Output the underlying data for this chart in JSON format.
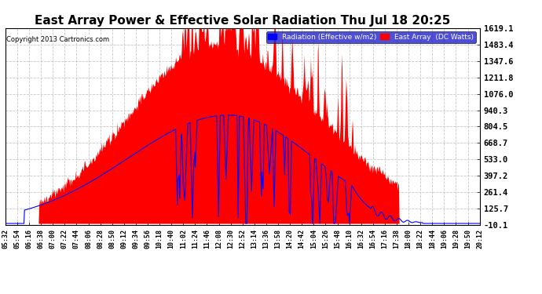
{
  "title": "East Array Power & Effective Solar Radiation Thu Jul 18 20:25",
  "copyright": "Copyright 2013 Cartronics.com",
  "legend_radiation": "Radiation (Effective w/m2)",
  "legend_array": "East Array  (DC Watts)",
  "y_ticks": [
    -10.1,
    125.7,
    261.4,
    397.2,
    533.0,
    668.7,
    804.5,
    940.3,
    1076.0,
    1211.8,
    1347.6,
    1483.4,
    1619.1
  ],
  "y_min": -10.1,
  "y_max": 1619.1,
  "bg_color": "#ffffff",
  "plot_bg_color": "#ffffff",
  "grid_color": "#c8c8c8",
  "red_fill_color": "#ff0000",
  "blue_line_color": "#0000ff",
  "title_color": "#000000",
  "title_fontsize": 11,
  "x_tick_labels": [
    "05:32",
    "05:54",
    "06:16",
    "06:38",
    "07:00",
    "07:22",
    "07:44",
    "08:06",
    "08:28",
    "08:50",
    "09:12",
    "09:34",
    "09:56",
    "10:18",
    "10:40",
    "11:02",
    "11:24",
    "11:46",
    "12:08",
    "12:30",
    "12:52",
    "13:14",
    "13:36",
    "13:58",
    "14:20",
    "14:42",
    "15:04",
    "15:26",
    "15:48",
    "16:10",
    "16:32",
    "16:54",
    "17:16",
    "17:38",
    "18:00",
    "18:22",
    "18:44",
    "19:06",
    "19:28",
    "19:50",
    "20:12"
  ],
  "num_points": 820
}
